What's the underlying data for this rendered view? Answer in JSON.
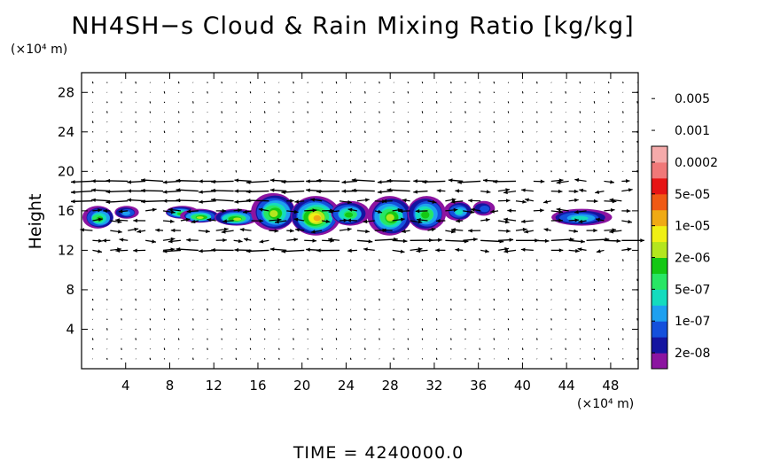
{
  "chart_data": {
    "type": "heatmap",
    "title": "NH4SH−s Cloud & Rain Mixing Ratio [kg/kg]",
    "ylabel": "Height",
    "y_unit": "(×10⁴ m)",
    "x_unit": "(×10⁴ m)",
    "xlim": [
      0,
      50.5
    ],
    "ylim": [
      0,
      30
    ],
    "xticks": [
      4,
      8,
      12,
      16,
      20,
      24,
      28,
      32,
      36,
      40,
      44,
      48
    ],
    "yticks": [
      4,
      8,
      12,
      16,
      20,
      24,
      28
    ],
    "colorbar": {
      "labels": [
        "2e-08",
        "1e-07",
        "5e-07",
        "2e-06",
        "1e-05",
        "5e-05",
        "0.0002",
        "0.001",
        "0.005"
      ],
      "colors": [
        "#8c14a0",
        "#1414a0",
        "#1450dc",
        "#1ea0f0",
        "#14dcbe",
        "#28e664",
        "#14c814",
        "#b4e61e",
        "#f0f014",
        "#f0aa14",
        "#f05a14",
        "#e61414",
        "#f07878",
        "#f5aaaa"
      ]
    },
    "cloud_layers": [
      {
        "x": [
          0.2,
          3.0
        ],
        "y": [
          14.2,
          16.5
        ],
        "level": 6
      },
      {
        "x": [
          3.0,
          5.2
        ],
        "y": [
          15.2,
          16.5
        ],
        "level": 3
      },
      {
        "x": [
          7.5,
          10.5
        ],
        "y": [
          15.2,
          16.5
        ],
        "level": 6
      },
      {
        "x": [
          9.0,
          12.5
        ],
        "y": [
          14.8,
          16.2
        ],
        "level": 7
      },
      {
        "x": [
          12.0,
          16.0
        ],
        "y": [
          14.5,
          16.2
        ],
        "level": 7
      },
      {
        "x": [
          15.5,
          19.5
        ],
        "y": [
          14.0,
          17.8
        ],
        "level": 7
      },
      {
        "x": [
          19.0,
          23.5
        ],
        "y": [
          13.5,
          17.5
        ],
        "level": 9
      },
      {
        "x": [
          22.5,
          26.0
        ],
        "y": [
          14.5,
          17.0
        ],
        "level": 6
      },
      {
        "x": [
          26.0,
          30.0
        ],
        "y": [
          13.5,
          17.5
        ],
        "level": 7
      },
      {
        "x": [
          29.5,
          33.0
        ],
        "y": [
          14.0,
          17.5
        ],
        "level": 6
      },
      {
        "x": [
          33.0,
          35.5
        ],
        "y": [
          15.0,
          17.0
        ],
        "level": 4
      },
      {
        "x": [
          35.5,
          37.5
        ],
        "y": [
          15.5,
          17.0
        ],
        "level": 2
      },
      {
        "x": [
          42.5,
          48.0
        ],
        "y": [
          14.5,
          16.2
        ],
        "level": 4
      }
    ],
    "wind_rows": [
      {
        "y": 19.0,
        "x": [
          1.0,
          40.0
        ],
        "u": -1.0
      },
      {
        "y": 18.0,
        "x": [
          1.0,
          32.0
        ],
        "u": -0.8
      },
      {
        "y": 17.0,
        "x": [
          0.5,
          18.0
        ],
        "u": -0.7
      },
      {
        "y": 13.0,
        "x": [
          24.0,
          50.0
        ],
        "u": 0.9
      },
      {
        "y": 12.0,
        "x": [
          8.0,
          24.0
        ],
        "u": -1.0
      }
    ]
  },
  "footer": {
    "time_label": "TIME  =  4240000.0"
  }
}
